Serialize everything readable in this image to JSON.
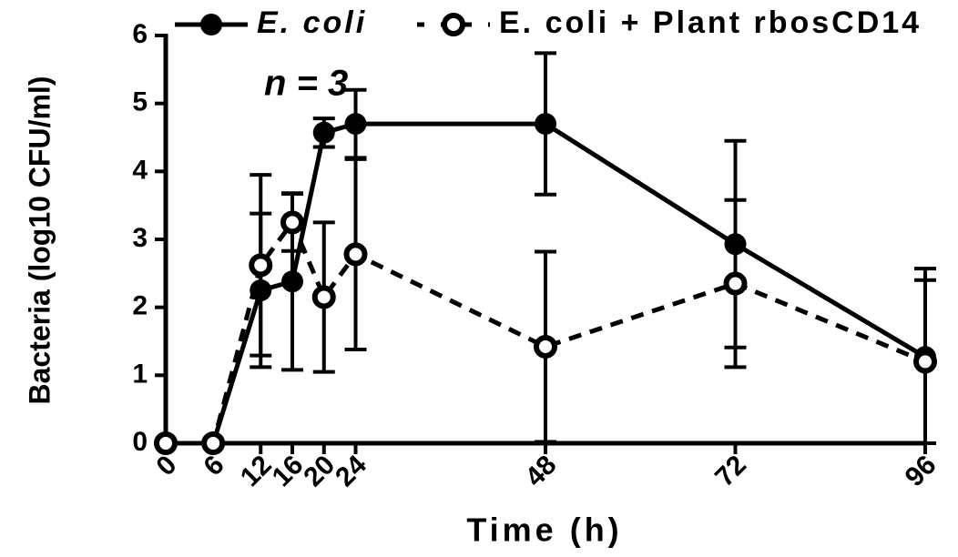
{
  "chart_data": {
    "type": "line",
    "x_label": "Time (h)",
    "y_label": "Bacteria (log10 CFU/ml)",
    "annotation": "n = 3",
    "x": [
      0,
      6,
      12,
      16,
      20,
      24,
      48,
      72,
      96
    ],
    "series": [
      {
        "name": "E. coli",
        "color": "#000000",
        "style": "solid",
        "marker": "filled",
        "values": [
          0,
          0,
          2.25,
          2.38,
          4.57,
          4.7,
          4.7,
          2.93,
          1.27
        ],
        "errors": [
          0,
          0,
          1.13,
          1.3,
          0.21,
          0.5,
          1.04,
          1.52,
          1.3
        ]
      },
      {
        "name": "E. coli + Plant rbosCD14",
        "color": "#000000",
        "style": "dashed",
        "marker": "open",
        "values": [
          0,
          0,
          2.62,
          3.25,
          2.15,
          2.78,
          1.42,
          2.35,
          1.2
        ],
        "errors": [
          0,
          0,
          1.33,
          0.42,
          1.1,
          1.4,
          1.4,
          1.23,
          1.2
        ]
      }
    ],
    "xlim": [
      0,
      96
    ],
    "xticks": [
      0,
      6,
      12,
      16,
      20,
      24,
      48,
      72,
      96
    ],
    "ylim": [
      0,
      6
    ],
    "yticks": [
      0,
      1,
      2,
      3,
      4,
      5,
      6
    ],
    "grid": false,
    "legend": "top"
  }
}
